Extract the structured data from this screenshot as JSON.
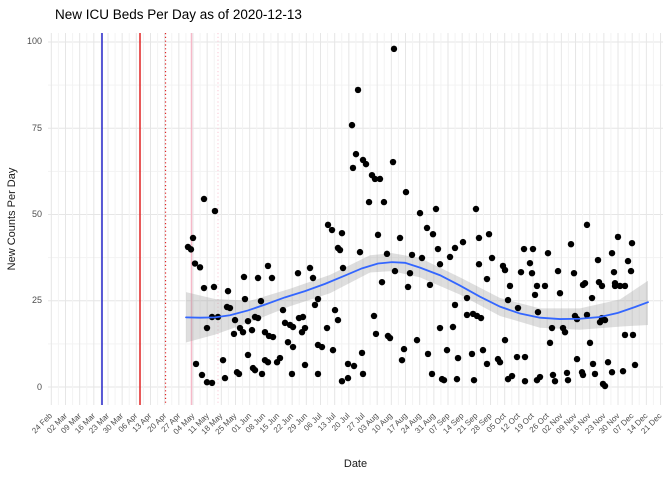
{
  "chart_data": {
    "type": "scatter",
    "title": "New ICU Beds Per Day as of 2020-12-13",
    "xlabel": "Date",
    "ylabel": "New Counts Per Day",
    "legend": "none",
    "grid": "major and minor gridlines, light gray on white (ggplot minimal theme)",
    "y_ticks": [
      0,
      25,
      50,
      75,
      100
    ],
    "ylim_panel": [
      -5.2,
      102.6
    ],
    "x_tick_labels": [
      "24 Feb",
      "02 Mar",
      "09 Mar",
      "16 Mar",
      "23 Mar",
      "30 Mar",
      "06 Apr",
      "13 Apr",
      "20 Apr",
      "27 Apr",
      "04 May",
      "11 May",
      "18 May",
      "25 May",
      "01 Jun",
      "08 Jun",
      "15 Jun",
      "22 Jun",
      "29 Jun",
      "06 Jul",
      "13 Jul",
      "20 Jul",
      "27 Jul",
      "03 Aug",
      "10 Aug",
      "17 Aug",
      "24 Aug",
      "31 Aug",
      "07 Sep",
      "14 Sep",
      "21 Sep",
      "28 Sep",
      "05 Oct",
      "12 Oct",
      "19 Oct",
      "26 Oct",
      "02 Nov",
      "09 Nov",
      "16 Nov",
      "23 Nov",
      "30 Nov",
      "07 Dec",
      "14 Dec",
      "21 Dec"
    ],
    "x_tick_first_frac": 0.0054,
    "x_tick_step_frac": 0.023037,
    "vlines": [
      {
        "x": 0.0878,
        "color": "#2424C8",
        "style": "solid",
        "width": 1.5
      },
      {
        "x": 0.1496,
        "color": "#E02424",
        "style": "solid",
        "width": 1.5
      },
      {
        "x": 0.1911,
        "color": "#E02424",
        "style": "dotted",
        "width": 1.2
      },
      {
        "x": 0.2333,
        "color": "#F6B9C9",
        "style": "solid",
        "width": 1.5
      },
      {
        "x": 0.2764,
        "color": "#F9D0DB",
        "style": "dotted",
        "width": 1.2
      }
    ],
    "smooth": {
      "color": "#3366FF",
      "width": 1.8,
      "line": [
        [
          0.2244,
          20.2
        ],
        [
          0.2472,
          20.1
        ],
        [
          0.2715,
          20.2
        ],
        [
          0.2959,
          20.8
        ],
        [
          0.3252,
          22.2
        ],
        [
          0.3545,
          24.0
        ],
        [
          0.3854,
          26.0
        ],
        [
          0.4179,
          27.8
        ],
        [
          0.4504,
          29.9
        ],
        [
          0.4829,
          32.3
        ],
        [
          0.5106,
          34.4
        ],
        [
          0.5366,
          35.8
        ],
        [
          0.5593,
          36.2
        ],
        [
          0.5805,
          36.0
        ],
        [
          0.6049,
          34.6
        ],
        [
          0.6374,
          32.4
        ],
        [
          0.6699,
          29.4
        ],
        [
          0.7024,
          26.2
        ],
        [
          0.735,
          23.3
        ],
        [
          0.7675,
          21.3
        ],
        [
          0.8,
          20.1
        ],
        [
          0.8325,
          19.7
        ],
        [
          0.865,
          19.8
        ],
        [
          0.8976,
          20.3
        ],
        [
          0.9268,
          21.5
        ],
        [
          0.9545,
          23.2
        ],
        [
          0.9756,
          24.6
        ]
      ]
    },
    "ci_band": {
      "color": "#999999",
      "opacity": 0.32,
      "upper": [
        [
          0.2244,
          27.5
        ],
        [
          0.2715,
          25.5
        ],
        [
          0.3285,
          25.0
        ],
        [
          0.3935,
          28.5
        ],
        [
          0.4585,
          32.5
        ],
        [
          0.5236,
          38.2
        ],
        [
          0.5593,
          38.8
        ],
        [
          0.6049,
          37.4
        ],
        [
          0.6699,
          31.8
        ],
        [
          0.735,
          25.8
        ],
        [
          0.8,
          22.8
        ],
        [
          0.865,
          22.8
        ],
        [
          0.9301,
          25.4
        ],
        [
          0.9756,
          30.8
        ]
      ],
      "lower": [
        [
          0.2244,
          12.9
        ],
        [
          0.2715,
          15.2
        ],
        [
          0.3285,
          18.8
        ],
        [
          0.3935,
          23.4
        ],
        [
          0.4585,
          27.2
        ],
        [
          0.5236,
          33.2
        ],
        [
          0.5593,
          33.6
        ],
        [
          0.6049,
          31.8
        ],
        [
          0.6699,
          26.8
        ],
        [
          0.735,
          20.6
        ],
        [
          0.8,
          17.2
        ],
        [
          0.865,
          16.6
        ],
        [
          0.9301,
          17.5
        ],
        [
          0.9756,
          18.0
        ]
      ]
    },
    "point_color": "#000000",
    "point_radius": 3.2,
    "points": [
      [
        0.2537,
        54.5
      ],
      [
        0.2715,
        51.0
      ],
      [
        0.2358,
        43.2
      ],
      [
        0.2276,
        40.6
      ],
      [
        0.2325,
        39.9
      ],
      [
        0.239,
        35.8
      ],
      [
        0.2472,
        34.7
      ],
      [
        0.2537,
        28.7
      ],
      [
        0.2699,
        29.0
      ],
      [
        0.2667,
        20.3
      ],
      [
        0.2585,
        17.1
      ],
      [
        0.2407,
        6.7
      ],
      [
        0.2504,
        3.5
      ],
      [
        0.2585,
        1.4
      ],
      [
        0.2667,
        1.2
      ],
      [
        0.2764,
        20.3
      ],
      [
        0.2927,
        27.8
      ],
      [
        0.2911,
        23.2
      ],
      [
        0.2959,
        22.9
      ],
      [
        0.3041,
        19.4
      ],
      [
        0.3122,
        17.1
      ],
      [
        0.3171,
        15.9
      ],
      [
        0.3203,
        25.5
      ],
      [
        0.3252,
        19.1
      ],
      [
        0.3317,
        16.5
      ],
      [
        0.3024,
        15.4
      ],
      [
        0.3252,
        9.3
      ],
      [
        0.3333,
        5.5
      ],
      [
        0.3366,
        4.9
      ],
      [
        0.2846,
        7.8
      ],
      [
        0.2878,
        2.6
      ],
      [
        0.3073,
        4.3
      ],
      [
        0.3106,
        3.8
      ],
      [
        0.3366,
        20.3
      ],
      [
        0.3415,
        20.0
      ],
      [
        0.3463,
        24.9
      ],
      [
        0.3415,
        31.6
      ],
      [
        0.3187,
        31.9
      ],
      [
        0.3528,
        15.9
      ],
      [
        0.3593,
        14.8
      ],
      [
        0.3659,
        14.5
      ],
      [
        0.3528,
        7.8
      ],
      [
        0.3577,
        7.2
      ],
      [
        0.3772,
        8.4
      ],
      [
        0.3724,
        7.2
      ],
      [
        0.348,
        3.8
      ],
      [
        0.3577,
        35.1
      ],
      [
        0.3642,
        31.6
      ],
      [
        0.3821,
        22.3
      ],
      [
        0.3854,
        18.6
      ],
      [
        0.3935,
        18.0
      ],
      [
        0.3984,
        17.4
      ],
      [
        0.3902,
        13.0
      ],
      [
        0.3984,
        11.6
      ],
      [
        0.3967,
        3.8
      ],
      [
        0.4065,
        33.0
      ],
      [
        0.4081,
        20.0
      ],
      [
        0.4146,
        20.3
      ],
      [
        0.4179,
        17.1
      ],
      [
        0.413,
        15.9
      ],
      [
        0.426,
        34.5
      ],
      [
        0.4309,
        31.6
      ],
      [
        0.4341,
        23.8
      ],
      [
        0.439,
        25.5
      ],
      [
        0.439,
        12.2
      ],
      [
        0.4455,
        11.6
      ],
      [
        0.4179,
        6.4
      ],
      [
        0.439,
        3.8
      ],
      [
        0.4537,
        17.1
      ],
      [
        0.4553,
        47.0
      ],
      [
        0.4618,
        45.5
      ],
      [
        0.4667,
        22.3
      ],
      [
        0.4715,
        19.4
      ],
      [
        0.4634,
        10.7
      ],
      [
        0.478,
        44.6
      ],
      [
        0.4715,
        40.3
      ],
      [
        0.4797,
        34.5
      ],
      [
        0.478,
        1.7
      ],
      [
        0.4748,
        39.7
      ],
      [
        0.4943,
        75.9
      ],
      [
        0.5041,
        86.1
      ],
      [
        0.5008,
        67.5
      ],
      [
        0.4959,
        63.5
      ],
      [
        0.5122,
        65.8
      ],
      [
        0.5171,
        64.6
      ],
      [
        0.5268,
        61.4
      ],
      [
        0.5317,
        60.3
      ],
      [
        0.5398,
        60.3
      ],
      [
        0.522,
        53.6
      ],
      [
        0.5073,
        39.1
      ],
      [
        0.5106,
        9.9
      ],
      [
        0.4878,
        6.7
      ],
      [
        0.4976,
        6.1
      ],
      [
        0.5122,
        3.8
      ],
      [
        0.4878,
        2.6
      ],
      [
        0.5366,
        44.1
      ],
      [
        0.5463,
        53.6
      ],
      [
        0.5512,
        38.6
      ],
      [
        0.5626,
        98.0
      ],
      [
        0.561,
        65.2
      ],
      [
        0.5642,
        33.6
      ],
      [
        0.5431,
        30.4
      ],
      [
        0.5528,
        14.8
      ],
      [
        0.5561,
        14.2
      ],
      [
        0.5301,
        20.6
      ],
      [
        0.5333,
        15.4
      ],
      [
        0.5724,
        43.2
      ],
      [
        0.5821,
        56.5
      ],
      [
        0.5919,
        38.3
      ],
      [
        0.5886,
        33.0
      ],
      [
        0.5854,
        29.0
      ],
      [
        0.5756,
        7.8
      ],
      [
        0.5789,
        11.0
      ],
      [
        0.6,
        13.6
      ],
      [
        0.6049,
        50.4
      ],
      [
        0.6081,
        37.4
      ],
      [
        0.6163,
        46.1
      ],
      [
        0.6211,
        29.6
      ],
      [
        0.626,
        44.3
      ],
      [
        0.6309,
        51.6
      ],
      [
        0.6341,
        40.0
      ],
      [
        0.6374,
        35.6
      ],
      [
        0.6374,
        17.1
      ],
      [
        0.6585,
        17.4
      ],
      [
        0.6537,
        37.7
      ],
      [
        0.6618,
        40.3
      ],
      [
        0.6618,
        23.8
      ],
      [
        0.6667,
        8.4
      ],
      [
        0.665,
        2.3
      ],
      [
        0.6407,
        2.3
      ],
      [
        0.6439,
        2.0
      ],
      [
        0.6179,
        9.6
      ],
      [
        0.6488,
        10.7
      ],
      [
        0.6244,
        3.8
      ],
      [
        0.6748,
        42.0
      ],
      [
        0.6813,
        25.8
      ],
      [
        0.6813,
        20.9
      ],
      [
        0.6911,
        21.2
      ],
      [
        0.6976,
        20.6
      ],
      [
        0.7041,
        20.0
      ],
      [
        0.6959,
        51.6
      ],
      [
        0.7008,
        43.2
      ],
      [
        0.7008,
        35.6
      ],
      [
        0.6894,
        9.6
      ],
      [
        0.6927,
        2.0
      ],
      [
        0.7073,
        10.7
      ],
      [
        0.7138,
        6.7
      ],
      [
        0.7138,
        31.3
      ],
      [
        0.7171,
        44.3
      ],
      [
        0.722,
        37.4
      ],
      [
        0.7317,
        8.1
      ],
      [
        0.735,
        7.2
      ],
      [
        0.7398,
        35.1
      ],
      [
        0.7431,
        33.9
      ],
      [
        0.748,
        25.2
      ],
      [
        0.748,
        2.3
      ],
      [
        0.7512,
        29.3
      ],
      [
        0.7545,
        3.2
      ],
      [
        0.7626,
        8.7
      ],
      [
        0.7642,
        22.9
      ],
      [
        0.7691,
        33.3
      ],
      [
        0.774,
        40.0
      ],
      [
        0.7756,
        8.7
      ],
      [
        0.7756,
        1.7
      ],
      [
        0.7837,
        35.9
      ],
      [
        0.787,
        33.0
      ],
      [
        0.7886,
        40.0
      ],
      [
        0.7919,
        26.7
      ],
      [
        0.7951,
        29.3
      ],
      [
        0.7951,
        2.0
      ],
      [
        0.7967,
        21.7
      ],
      [
        0.8,
        2.9
      ],
      [
        0.8081,
        29.3
      ],
      [
        0.813,
        38.8
      ],
      [
        0.8163,
        12.8
      ],
      [
        0.8195,
        17.1
      ],
      [
        0.8211,
        3.5
      ],
      [
        0.8244,
        1.7
      ],
      [
        0.8293,
        33.6
      ],
      [
        0.8325,
        27.2
      ],
      [
        0.7431,
        13.6
      ],
      [
        0.8374,
        17.1
      ],
      [
        0.8407,
        15.9
      ],
      [
        0.8439,
        4.1
      ],
      [
        0.8455,
        2.0
      ],
      [
        0.8504,
        41.4
      ],
      [
        0.8553,
        33.0
      ],
      [
        0.8569,
        20.6
      ],
      [
        0.8602,
        19.7
      ],
      [
        0.8602,
        8.1
      ],
      [
        0.8683,
        4.3
      ],
      [
        0.8699,
        3.5
      ],
      [
        0.8699,
        29.6
      ],
      [
        0.8732,
        30.1
      ],
      [
        0.8764,
        47.0
      ],
      [
        0.8764,
        20.9
      ],
      [
        0.8813,
        12.8
      ],
      [
        0.8846,
        25.8
      ],
      [
        0.8862,
        6.7
      ],
      [
        0.8894,
        3.8
      ],
      [
        0.8943,
        36.8
      ],
      [
        0.8959,
        30.4
      ],
      [
        0.8976,
        18.8
      ],
      [
        0.9008,
        20.0
      ],
      [
        0.9008,
        29.3
      ],
      [
        0.9057,
        19.4
      ],
      [
        0.9057,
        0.3
      ],
      [
        0.9106,
        7.2
      ],
      [
        0.9171,
        38.8
      ],
      [
        0.9171,
        4.3
      ],
      [
        0.9203,
        33.3
      ],
      [
        0.922,
        30.1
      ],
      [
        0.922,
        29.3
      ],
      [
        0.9268,
        43.5
      ],
      [
        0.9301,
        29.3
      ],
      [
        0.935,
        4.6
      ],
      [
        0.9382,
        29.3
      ],
      [
        0.9382,
        15.1
      ],
      [
        0.9431,
        36.5
      ],
      [
        0.948,
        33.6
      ],
      [
        0.9496,
        41.7
      ],
      [
        0.9512,
        15.1
      ],
      [
        0.9545,
        6.4
      ],
      [
        0.9024,
        0.9
      ]
    ]
  },
  "colors": {
    "background": "#FFFFFF",
    "grid_major": "#E6E6E6",
    "grid_minor": "#F3F3F3",
    "axis_text": "#4D4D4D",
    "title_text": "#000000",
    "point": "#000000",
    "smooth_line": "#3366FF",
    "ci_band": "#999999"
  }
}
